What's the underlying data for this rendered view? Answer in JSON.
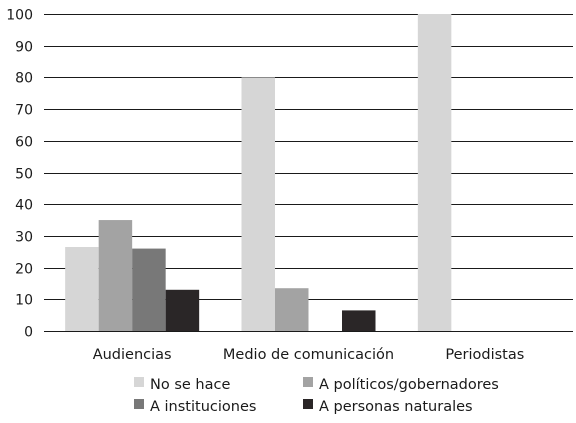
{
  "chart_data": {
    "type": "bar",
    "title": "",
    "xlabel": "",
    "ylabel": "",
    "ylim": [
      0,
      100
    ],
    "yticks": [
      0,
      10,
      20,
      30,
      40,
      50,
      60,
      70,
      80,
      90,
      100
    ],
    "grid": true,
    "legend_position": "bottom",
    "categories": [
      "Audiencias",
      "Medio de comunicación",
      "Periodistas"
    ],
    "series": [
      {
        "name": "No se hace",
        "color": "#d6d6d6",
        "values": [
          26.5,
          80,
          100
        ]
      },
      {
        "name": "A políticos/gobernadores",
        "color": "#a3a3a3",
        "values": [
          35,
          13.5,
          0
        ]
      },
      {
        "name": "A instituciones",
        "color": "#787878",
        "values": [
          26,
          0,
          0
        ]
      },
      {
        "name": "A personas naturales",
        "color": "#2a2627",
        "values": [
          13,
          6.5,
          0
        ]
      }
    ]
  }
}
